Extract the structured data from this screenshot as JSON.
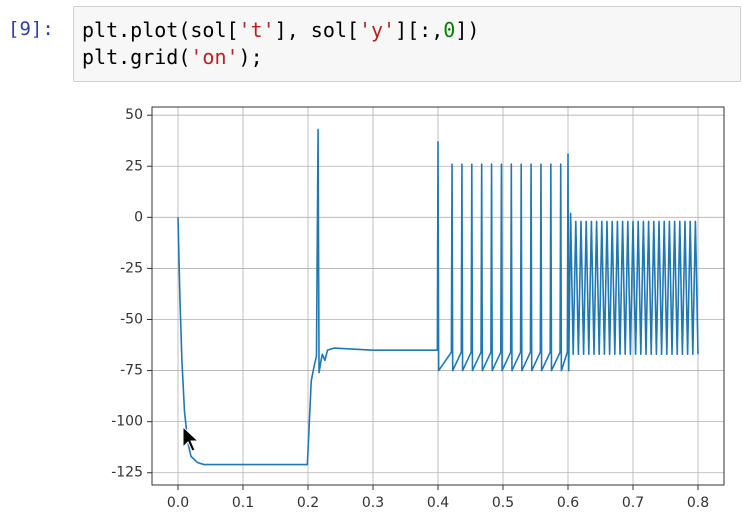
{
  "cell": {
    "prompt": "[9]:",
    "lines": [
      [
        "plt.plot(sol[",
        "'t'",
        "], sol[",
        "'y'",
        "][:,",
        "0",
        "])"
      ],
      [
        "plt.grid(",
        "'on'",
        ");"
      ]
    ]
  },
  "chart_data": {
    "type": "line",
    "color": "#1f77b4",
    "grid": true,
    "xlim": [
      -0.04,
      0.84
    ],
    "ylim": [
      -131,
      54
    ],
    "xticks": [
      {
        "value": 0,
        "label": "0.0"
      },
      0.1,
      0.2,
      0.3,
      0.4,
      0.5,
      0.6,
      0.7,
      0.8
    ],
    "yticks": [
      -125,
      -100,
      -75,
      -50,
      -25,
      0,
      25,
      50
    ],
    "x": [
      0,
      0.003,
      0.006,
      0.01,
      0.015,
      0.02,
      0.03,
      0.04,
      0.06,
      0.1,
      0.15,
      0.199,
      0.205,
      0.21,
      0.213,
      0.2155,
      0.217,
      0.219,
      0.222,
      0.226,
      0.23,
      0.24,
      0.3,
      0.35,
      0.399,
      0.4,
      0.401,
      0.4206,
      0.4216,
      0.4226,
      0.4358,
      0.4368,
      0.4378,
      0.451,
      0.452,
      0.453,
      0.4662,
      0.4672,
      0.4682,
      0.4814,
      0.4824,
      0.4834,
      0.4966,
      0.4976,
      0.4986,
      0.5118,
      0.5128,
      0.5138,
      0.527,
      0.528,
      0.529,
      0.5422,
      0.5432,
      0.5442,
      0.5574,
      0.5584,
      0.5594,
      0.5726,
      0.5736,
      0.5746,
      0.5878,
      0.5888,
      0.5898,
      0.599,
      0.6,
      0.601,
      0.604,
      0.608,
      0.612,
      0.616,
      0.62,
      0.624,
      0.628,
      0.632,
      0.636,
      0.64,
      0.644,
      0.648,
      0.652,
      0.656,
      0.66,
      0.664,
      0.668,
      0.672,
      0.676,
      0.68,
      0.684,
      0.688,
      0.692,
      0.696,
      0.7,
      0.704,
      0.708,
      0.712,
      0.716,
      0.72,
      0.724,
      0.728,
      0.732,
      0.736,
      0.74,
      0.744,
      0.748,
      0.752,
      0.756,
      0.76,
      0.764,
      0.768,
      0.772,
      0.776,
      0.78,
      0.784,
      0.788,
      0.792,
      0.796,
      0.8
    ],
    "values": [
      0,
      -40,
      -70,
      -95,
      -110,
      -117,
      -120,
      -121,
      -121,
      -121,
      -121,
      -121,
      -80,
      -72,
      -68,
      43,
      -76,
      -72,
      -67,
      -70,
      -65,
      -64,
      -65,
      -65,
      -65,
      37,
      -75,
      -66,
      26,
      -75,
      -66,
      26,
      -75,
      -66,
      26,
      -75,
      -66,
      26,
      -75,
      -66,
      26,
      -75,
      -66,
      26,
      -75,
      -66,
      26,
      -75,
      -66,
      26,
      -75,
      -66,
      26,
      -75,
      -66,
      26,
      -75,
      -66,
      26,
      -75,
      -66,
      26,
      -75,
      -66,
      31,
      -75,
      2,
      -67,
      -2,
      -67,
      -2,
      -67,
      -2,
      -67,
      -2,
      -67,
      -2,
      -67,
      -2,
      -67,
      -2,
      -67,
      -2,
      -67,
      -2,
      -67,
      -2,
      -67,
      -2,
      -67,
      -2,
      -67,
      -2,
      -67,
      -2,
      -67,
      -2,
      -67,
      -2,
      -67,
      -2,
      -67,
      -2,
      -67,
      -2,
      -67,
      -2,
      -67,
      -2,
      -67,
      -2,
      -67,
      -2,
      -67,
      -2,
      -67
    ]
  }
}
